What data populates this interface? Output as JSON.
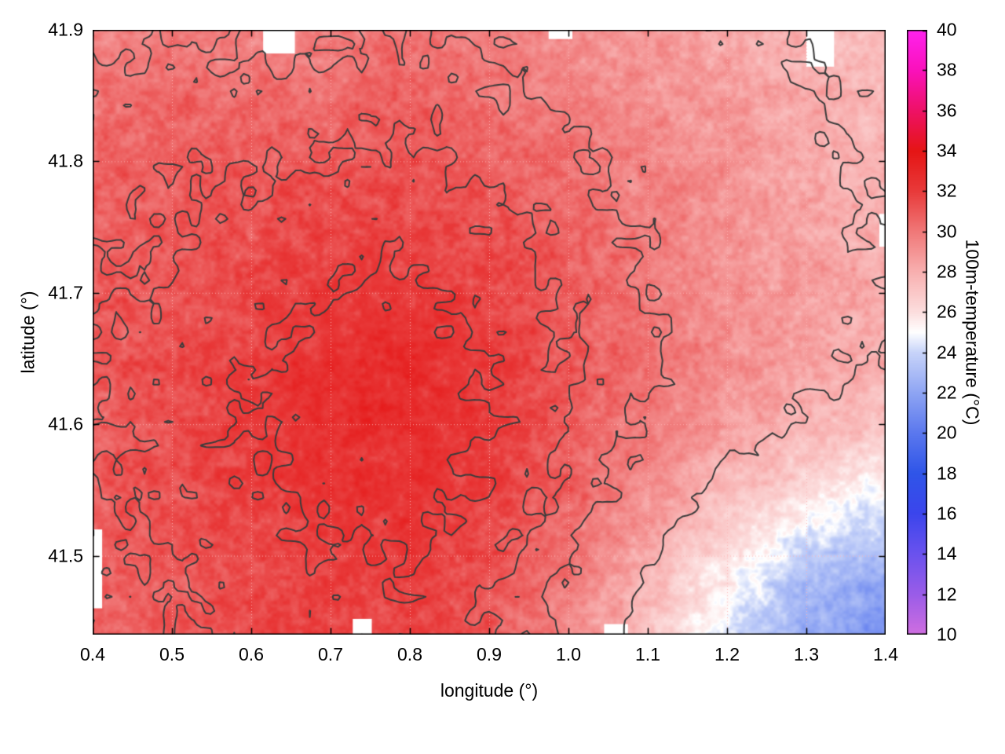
{
  "figure": {
    "background": "#ffffff"
  },
  "chart_data": {
    "type": "heatmap",
    "title": "",
    "xlabel": "longitude (°)",
    "ylabel": "latitude (°)",
    "colorbar_label": "100m-temperature (°C)",
    "x_range": [
      0.4,
      1.4
    ],
    "y_range": [
      41.44,
      41.9
    ],
    "x_ticks": [
      0.4,
      0.5,
      0.6,
      0.7,
      0.8,
      0.9,
      1.0,
      1.1,
      1.2,
      1.3,
      1.4
    ],
    "x_tick_labels": [
      "0.4",
      "0.5",
      "0.6",
      "0.7",
      "0.8",
      "0.9",
      "1.0",
      "1.1",
      "1.2",
      "1.3",
      "1.4"
    ],
    "y_ticks": [
      41.5,
      41.6,
      41.7,
      41.8,
      41.9
    ],
    "y_tick_labels": [
      "41.5",
      "41.6",
      "41.7",
      "41.8",
      "41.9"
    ],
    "colorbar_range": [
      10,
      40
    ],
    "colorbar_ticks": [
      10,
      12,
      14,
      16,
      18,
      20,
      22,
      24,
      26,
      28,
      30,
      32,
      34,
      36,
      38,
      40
    ],
    "grid_on": true,
    "grid_line_color": "#ffb4b4",
    "contour_color": "#3c3c3c",
    "contour_levels": [
      28,
      30,
      31,
      32
    ],
    "palette": [
      {
        "v": 10,
        "color": "#cf6ee0"
      },
      {
        "v": 12,
        "color": "#9a5ce8"
      },
      {
        "v": 14,
        "color": "#6a52ee"
      },
      {
        "v": 16,
        "color": "#3b45ec"
      },
      {
        "v": 18,
        "color": "#2f55e8"
      },
      {
        "v": 20,
        "color": "#5b78ee"
      },
      {
        "v": 22,
        "color": "#8fa5f3"
      },
      {
        "v": 24,
        "color": "#c8d4f9"
      },
      {
        "v": 25,
        "color": "#ffffff"
      },
      {
        "v": 26,
        "color": "#fcdede"
      },
      {
        "v": 28,
        "color": "#f8b0b0"
      },
      {
        "v": 30,
        "color": "#f07878"
      },
      {
        "v": 32,
        "color": "#e83a3a"
      },
      {
        "v": 34,
        "color": "#e51515"
      },
      {
        "v": 36,
        "color": "#ee1166"
      },
      {
        "v": 38,
        "color": "#fa11bb"
      },
      {
        "v": 40,
        "color": "#ff22ee"
      }
    ],
    "grid": {
      "lon_start": 0.4,
      "lon_step": 0.1,
      "lat_start": 41.9,
      "lat_step": -0.05,
      "values": [
        [
          29.5,
          29.9,
          29.5,
          29.8,
          30.0,
          29.8,
          29.2,
          28.8,
          28.3,
          27.8,
          27.4
        ],
        [
          30.2,
          30.5,
          30.3,
          30.4,
          30.6,
          30.2,
          29.6,
          29.2,
          28.6,
          28.1,
          27.6
        ],
        [
          30.5,
          30.8,
          31.0,
          31.2,
          31.3,
          30.8,
          30.2,
          29.6,
          28.9,
          28.3,
          27.8
        ],
        [
          30.8,
          31.0,
          31.3,
          31.6,
          31.6,
          31.2,
          30.6,
          29.9,
          29.1,
          28.5,
          28.0
        ],
        [
          30.9,
          31.2,
          31.6,
          32.0,
          32.1,
          31.6,
          30.9,
          30.1,
          29.2,
          28.6,
          28.2
        ],
        [
          30.9,
          31.4,
          31.9,
          32.5,
          32.6,
          32.0,
          31.1,
          30.1,
          29.1,
          28.4,
          28.0
        ],
        [
          30.9,
          31.4,
          32.0,
          32.6,
          32.7,
          32.1,
          31.0,
          29.9,
          28.7,
          27.8,
          27.2
        ],
        [
          30.8,
          31.3,
          31.8,
          32.3,
          32.4,
          31.8,
          30.7,
          29.3,
          27.6,
          26.2,
          25.2
        ],
        [
          30.7,
          31.1,
          31.5,
          31.9,
          32.0,
          31.4,
          30.1,
          28.3,
          25.8,
          23.8,
          22.8
        ],
        [
          30.6,
          31.0,
          31.3,
          31.6,
          31.7,
          31.0,
          29.5,
          27.3,
          24.4,
          22.4,
          21.2
        ]
      ]
    },
    "missing_regions": [
      {
        "lon": [
          0.615,
          0.655
        ],
        "lat": [
          41.882,
          41.9
        ]
      },
      {
        "lon": [
          0.975,
          1.005
        ],
        "lat": [
          41.893,
          41.9
        ]
      },
      {
        "lon": [
          1.3,
          1.335
        ],
        "lat": [
          41.872,
          41.9
        ]
      },
      {
        "lon": [
          0.4,
          0.412
        ],
        "lat": [
          41.46,
          41.52
        ]
      },
      {
        "lon": [
          0.728,
          0.752
        ],
        "lat": [
          41.44,
          41.452
        ]
      },
      {
        "lon": [
          1.045,
          1.075
        ],
        "lat": [
          41.44,
          41.448
        ]
      },
      {
        "lon": [
          1.392,
          1.4
        ],
        "lat": [
          41.735,
          41.76
        ]
      }
    ]
  }
}
